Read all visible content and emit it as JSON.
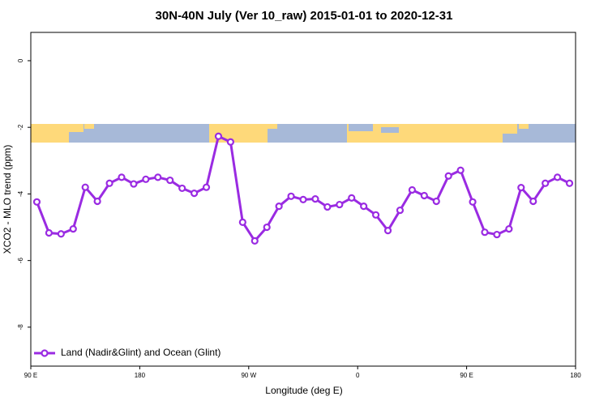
{
  "chart_data": {
    "type": "line",
    "title": "30N-40N July (Ver 10_raw)   2015-01-01 to 2020-12-31",
    "x_label": "Longitude (deg E)",
    "y_label": "XCO2 - MLO trend (ppm)",
    "x": [
      95,
      105,
      115,
      125,
      135,
      145,
      155,
      165,
      175,
      185,
      195,
      205,
      215,
      225,
      235,
      245,
      255,
      265,
      275,
      285,
      295,
      305,
      315,
      325,
      335,
      345,
      355,
      365,
      375,
      385,
      395,
      405,
      415,
      425,
      435,
      445,
      455,
      465,
      475,
      485,
      495,
      505,
      515,
      525,
      535
    ],
    "series": [
      {
        "name": "Land (Nadir&Glint) and Ocean (Glint)",
        "color": "#9a2be2",
        "values": [
          -4.24,
          -5.17,
          -5.2,
          -5.05,
          -3.8,
          -4.22,
          -3.68,
          -3.5,
          -3.7,
          -3.56,
          -3.5,
          -3.59,
          -3.83,
          -3.98,
          -3.8,
          -2.27,
          -2.44,
          -4.85,
          -5.41,
          -5.0,
          -4.37,
          -4.07,
          -4.17,
          -4.15,
          -4.39,
          -4.32,
          -4.12,
          -4.37,
          -4.63,
          -5.1,
          -4.49,
          -3.88,
          -4.05,
          -4.22,
          -3.46,
          -3.29,
          -4.24,
          -5.15,
          -5.22,
          -5.05,
          -3.81,
          -4.22,
          -3.68,
          -3.5,
          -3.68
        ]
      }
    ],
    "xlim": [
      90,
      540
    ],
    "xticks": [
      {
        "value": 90,
        "label": "90 E"
      },
      180,
      {
        "value": 270,
        "label": "90 W"
      },
      {
        "value": 360,
        "label": "0"
      },
      {
        "value": 450,
        "label": "90 E"
      },
      {
        "value": 540,
        "label": "180"
      }
    ],
    "ylim": [
      -9.17,
      0.85
    ],
    "yticks": [
      0,
      -2,
      -4,
      -6,
      -8
    ],
    "legend": "bottom-left"
  }
}
